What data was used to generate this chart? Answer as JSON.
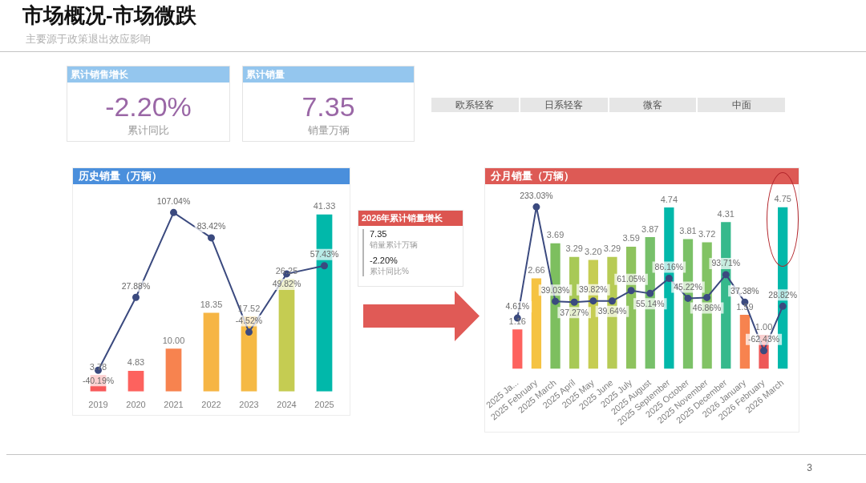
{
  "chart_data": [
    {
      "type": "other",
      "title": "市场概况-市场微跌",
      "subtitle": "主要源于政策退出效应影响",
      "annotations": [
        "3"
      ]
    },
    {
      "type": "other",
      "title": "累计销售增长",
      "annotations": [
        "-2.20%",
        "累计同比"
      ]
    },
    {
      "type": "other",
      "title": "累计销量",
      "annotations": [
        "7.35",
        "销量万辆"
      ]
    },
    {
      "type": "other",
      "annotations": [
        "欧系轻客",
        "日系轻客",
        "微客",
        "中面"
      ]
    },
    {
      "type": "bar",
      "title": "历史销量（万辆）",
      "categories": [
        "2019",
        "2020",
        "2021",
        "2022",
        "2023",
        "2024",
        "2025"
      ],
      "series": [
        {
          "type": "bar",
          "colors": [
            "#f8595a",
            "#fd625e",
            "#f7834f",
            "#f6b544",
            "#f5b944",
            "#c5cc52",
            "#01b8aa"
          ],
          "values": [
            3.78,
            4.83,
            10,
            18.35,
            17.52,
            26.25,
            41.33
          ],
          "value_labels": [
            "3.78",
            "4.83",
            "10.00",
            "18.35",
            "17.52",
            "26.25",
            "41.33"
          ]
        },
        {
          "type": "line",
          "axis": "y2",
          "color": "#3b4a7f",
          "values": [
            -40.19,
            27.88,
            107.04,
            83.42,
            -4.52,
            49.82,
            57.43
          ],
          "value_labels": [
            "-40.19%",
            "27.88%",
            "107.04%",
            "83.42%",
            "-4.52%",
            "49.82%",
            "57.43%"
          ]
        }
      ],
      "marker": "circle",
      "tick_labels": "x",
      "grid": false,
      "legend": false
    },
    {
      "type": "other",
      "title": "2026年累计销量增长",
      "annotations": [
        "7.35",
        "销量累计万辆",
        "-2.20%",
        "累计同比%"
      ]
    },
    {
      "type": "bar",
      "title": "分月销量（万辆）",
      "categories": [
        "2025 Ja...",
        "2025 February",
        "2025 March",
        "2025 April",
        "2025 May",
        "2025 June",
        "2025 July",
        "2025 August",
        "2025 September",
        "2025 October",
        "2025 November",
        "2025 December",
        "2026 January",
        "2026 February",
        "2026 March"
      ],
      "series": [
        {
          "type": "bar",
          "colors": [
            "#fd625e",
            "#f5c342",
            "#7dbf5f",
            "#a8c956",
            "#c6cd52",
            "#b7cb55",
            "#8ec35e",
            "#77c06a",
            "#01b8aa",
            "#7bc167",
            "#82c364",
            "#36b98c",
            "#f7834f",
            "#ee5858",
            "#01b8aa"
          ],
          "values": [
            1.16,
            2.66,
            3.69,
            3.29,
            3.2,
            3.29,
            3.59,
            3.87,
            4.74,
            3.81,
            3.72,
            4.31,
            1.59,
            1,
            4.75
          ],
          "value_labels": [
            "1.16",
            "2.66",
            "3.69",
            "3.29",
            "3.20",
            "3.29",
            "3.59",
            "3.87",
            "4.74",
            "3.81",
            "3.72",
            "4.31",
            "1.59",
            "1.00",
            "4.75"
          ]
        },
        {
          "type": "line",
          "axis": "y2",
          "color": "#3b4a7f",
          "values": [
            4.61,
            233.03,
            39.03,
            37.27,
            39.82,
            39.64,
            61.05,
            55.14,
            86.16,
            45.22,
            46.86,
            93.71,
            37.38,
            -62.43,
            28.82
          ],
          "value_labels": [
            "4.61%",
            "233.03%",
            "39.03%",
            "37.27%",
            "39.82%",
            "39.64%",
            "61.05%",
            "55.14%",
            "86.16%",
            "45.22%",
            "46.86%",
            "93.71%",
            "37.38%",
            "-62.43%",
            "28.82%"
          ]
        }
      ],
      "marker": "circle",
      "tick_labels": "x",
      "grid": false,
      "legend": false
    }
  ]
}
